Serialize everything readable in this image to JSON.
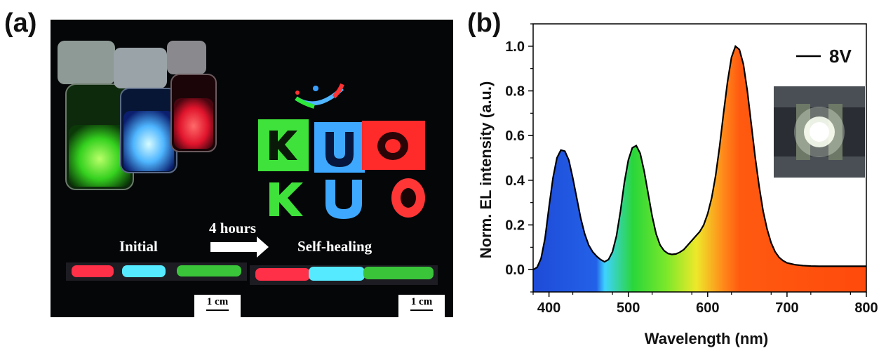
{
  "panel_labels": {
    "a": "(a)",
    "b": "(b)"
  },
  "photo": {
    "initial_label": "Initial",
    "arrow_label": "4 hours",
    "self_healing_label": "Self-healing",
    "scale_bar_1": "1 cm",
    "scale_bar_2": "1 cm"
  },
  "chart_data": {
    "type": "area",
    "title": "",
    "xlabel": "Wavelength (nm)",
    "ylabel": "Norm. EL intensity (a.u.)",
    "xlim": [
      380,
      800
    ],
    "ylim": [
      -0.1,
      1.1
    ],
    "xticks": [
      400,
      500,
      600,
      700,
      800
    ],
    "yticks": [
      0.0,
      0.2,
      0.4,
      0.6,
      0.8,
      1.0
    ],
    "legend": [
      {
        "name": "8V",
        "color": "#000000"
      }
    ],
    "legend_position": "top-right",
    "inset": "photograph of emitting device",
    "series": [
      {
        "name": "8V",
        "x": [
          380,
          385,
          390,
          395,
          400,
          405,
          410,
          415,
          420,
          425,
          430,
          435,
          440,
          445,
          450,
          455,
          460,
          465,
          470,
          475,
          480,
          485,
          490,
          495,
          500,
          505,
          510,
          515,
          520,
          525,
          530,
          535,
          540,
          545,
          550,
          555,
          560,
          565,
          570,
          575,
          580,
          585,
          590,
          595,
          600,
          605,
          610,
          615,
          620,
          625,
          630,
          635,
          640,
          645,
          650,
          655,
          660,
          665,
          670,
          675,
          680,
          685,
          690,
          695,
          700,
          710,
          720,
          730,
          740,
          750,
          760,
          770,
          780,
          790,
          800
        ],
        "y": [
          0.0,
          0.01,
          0.05,
          0.14,
          0.28,
          0.41,
          0.5,
          0.535,
          0.53,
          0.49,
          0.41,
          0.32,
          0.23,
          0.16,
          0.11,
          0.08,
          0.06,
          0.045,
          0.035,
          0.045,
          0.08,
          0.15,
          0.26,
          0.39,
          0.49,
          0.545,
          0.555,
          0.52,
          0.44,
          0.34,
          0.24,
          0.16,
          0.11,
          0.085,
          0.072,
          0.068,
          0.07,
          0.078,
          0.09,
          0.11,
          0.13,
          0.15,
          0.17,
          0.2,
          0.25,
          0.32,
          0.42,
          0.55,
          0.7,
          0.84,
          0.95,
          1.0,
          0.985,
          0.92,
          0.8,
          0.65,
          0.5,
          0.37,
          0.26,
          0.18,
          0.12,
          0.08,
          0.055,
          0.04,
          0.03,
          0.022,
          0.018,
          0.016,
          0.015,
          0.015,
          0.015,
          0.015,
          0.015,
          0.015,
          0.015
        ]
      }
    ]
  }
}
